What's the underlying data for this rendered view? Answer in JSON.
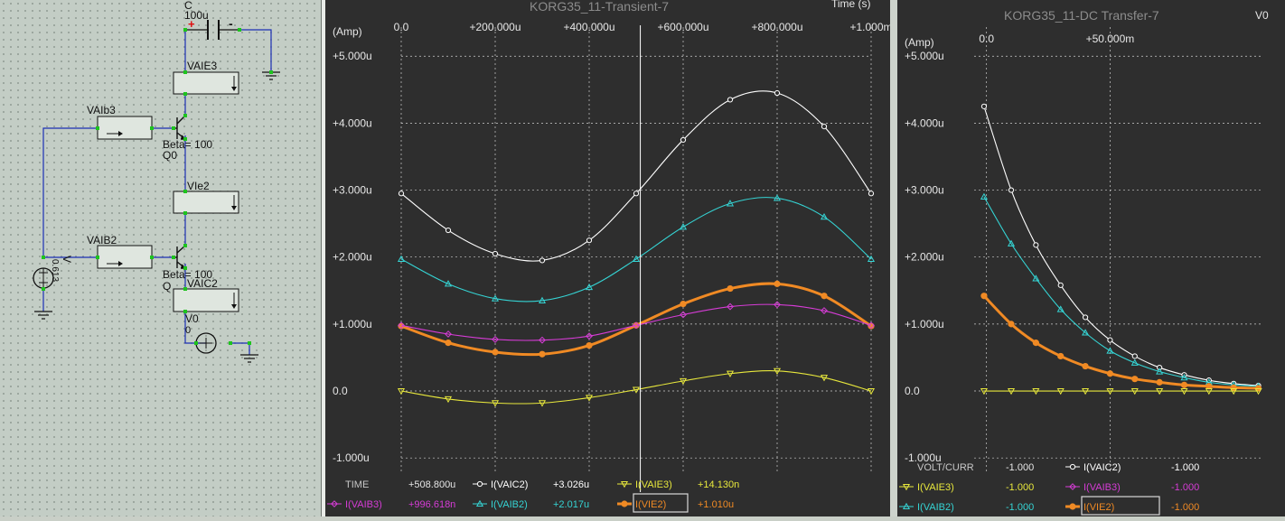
{
  "schematic": {
    "cap_ref": "C",
    "cap_value": "100u",
    "cap_plus": "+",
    "cap_minus": "-",
    "meter_vaie3": "VAIE3",
    "meter_vaib3": "VAIb3",
    "meter_vie2": "VIe2",
    "meter_vaib2": "VAIB2",
    "meter_vaic2": "VAIC2",
    "q0_beta": "Beta= 100",
    "q0_label": "Q0",
    "q_beta": "Beta= 100",
    "q_label": "Q",
    "vsrc_label": "V",
    "vsrc_value": "0.613",
    "v0_label": "V0",
    "v0_value": "0"
  },
  "transient": {
    "title": "KORG35_11-Transient-7",
    "x_unit": "Time (s)",
    "y_unit": "(Amp)",
    "x_ticks": [
      "0.0",
      "+200.000u",
      "+400.000u",
      "+600.000u",
      "+800.000u",
      "+1.000m"
    ],
    "y_ticks": [
      "+5.000u",
      "+4.000u",
      "+3.000u",
      "+2.000u",
      "+1.000u",
      "0.0",
      "-1.000u"
    ],
    "cursor_x": 508.8,
    "legend": {
      "row1": [
        {
          "label": "TIME",
          "value": "+508.800u",
          "color": "#c8c8c8",
          "marker": ""
        },
        {
          "label": "I(VAIC2)",
          "value": "+3.026u",
          "color": "#ffffff",
          "marker": "circle"
        },
        {
          "label": "I(VAIE3)",
          "value": "+14.130n",
          "color": "#e8e83c",
          "marker": "tri-down"
        }
      ],
      "row2": [
        {
          "label": "I(VAIB3)",
          "value": "+996.618n",
          "color": "#d63cd6",
          "marker": "diamond"
        },
        {
          "label": "I(VAIB2)",
          "value": "+2.017u",
          "color": "#35d4d4",
          "marker": "tri-up"
        },
        {
          "label": "I(VIE2)",
          "value": "+1.010u",
          "color": "#f08a24",
          "marker": "dot"
        }
      ]
    }
  },
  "dc": {
    "title": "KORG35_11-DC Transfer-7",
    "corner": "V0",
    "y_unit": "(Amp)",
    "x_ticks": [
      "0.0",
      "+50.000m"
    ],
    "y_ticks": [
      "+5.000u",
      "+4.000u",
      "+3.000u",
      "+2.000u",
      "+1.000u",
      "0.0",
      "-1.000u"
    ],
    "legend": {
      "row1": [
        {
          "label": "VOLT/CURR",
          "value": "-1.000",
          "color": "#c8c8c8",
          "marker": ""
        },
        {
          "label": "I(VAIC2)",
          "value": "-1.000",
          "color": "#ffffff",
          "marker": "circle"
        }
      ],
      "row2": [
        {
          "label": "I(VAIE3)",
          "value": "-1.000",
          "color": "#e8e83c",
          "marker": "tri-down"
        },
        {
          "label": "I(VAIB3)",
          "value": "-1.000",
          "color": "#d63cd6",
          "marker": "diamond"
        }
      ],
      "row3": [
        {
          "label": "I(VAIB2)",
          "value": "-1.000",
          "color": "#35d4d4",
          "marker": "tri-up"
        },
        {
          "label": "I(VIE2)",
          "value": "-1.000",
          "color": "#f08a24",
          "marker": "dot"
        }
      ]
    }
  },
  "chart_data": [
    {
      "type": "line",
      "title": "KORG35_11-Transient-7",
      "xlabel": "Time (s)",
      "ylabel": "(Amp)",
      "x": [
        0,
        100,
        200,
        300,
        400,
        500,
        600,
        700,
        800,
        900,
        1000
      ],
      "xlim": [
        0,
        1000
      ],
      "ylim": [
        -1.2,
        5.3
      ],
      "grid": true,
      "series": [
        {
          "name": "I(VAIC2)",
          "color": "#ffffff",
          "values": [
            2.95,
            2.4,
            2.05,
            1.95,
            2.25,
            2.95,
            3.75,
            4.35,
            4.45,
            3.95,
            2.95
          ]
        },
        {
          "name": "I(VAIB2)",
          "color": "#35d4d4",
          "values": [
            1.97,
            1.6,
            1.38,
            1.35,
            1.55,
            1.97,
            2.45,
            2.8,
            2.88,
            2.6,
            1.97
          ]
        },
        {
          "name": "I(VIE2)",
          "color": "#f08a24",
          "values": [
            0.97,
            0.72,
            0.58,
            0.55,
            0.68,
            0.98,
            1.3,
            1.53,
            1.6,
            1.42,
            0.97
          ]
        },
        {
          "name": "I(VAIB3)",
          "color": "#d63cd6",
          "values": [
            0.98,
            0.85,
            0.77,
            0.76,
            0.82,
            0.98,
            1.14,
            1.26,
            1.29,
            1.2,
            0.98
          ]
        },
        {
          "name": "I(VAIE3)",
          "color": "#e8e83c",
          "values": [
            0.0,
            -0.12,
            -0.18,
            -0.18,
            -0.1,
            0.02,
            0.15,
            0.26,
            0.3,
            0.2,
            0.0
          ]
        }
      ]
    },
    {
      "type": "line",
      "title": "KORG35_11-DC Transfer-7",
      "ylabel": "(Amp)",
      "x": [
        -1,
        10,
        20,
        30,
        40,
        50,
        60,
        70,
        80,
        90,
        100,
        110
      ],
      "xlim": [
        -5,
        112
      ],
      "ylim": [
        -1.2,
        5.3
      ],
      "grid": true,
      "series": [
        {
          "name": "I(VAIC2)",
          "color": "#ffffff",
          "values": [
            4.25,
            3.0,
            2.18,
            1.58,
            1.1,
            0.76,
            0.52,
            0.35,
            0.24,
            0.16,
            0.11,
            0.08
          ]
        },
        {
          "name": "I(VAIB2)",
          "color": "#35d4d4",
          "values": [
            2.9,
            2.2,
            1.68,
            1.22,
            0.87,
            0.6,
            0.42,
            0.29,
            0.2,
            0.13,
            0.09,
            0.07
          ]
        },
        {
          "name": "I(VIE2)",
          "color": "#f08a24",
          "values": [
            1.42,
            1.0,
            0.72,
            0.52,
            0.37,
            0.26,
            0.18,
            0.13,
            0.09,
            0.07,
            0.05,
            0.04
          ]
        },
        {
          "name": "I(VAIE3)",
          "color": "#e8e83c",
          "values": [
            0.0,
            0.0,
            0.0,
            0.0,
            0.0,
            0.0,
            0.0,
            0.0,
            0.0,
            0.0,
            0.0,
            0.0
          ]
        }
      ]
    }
  ]
}
